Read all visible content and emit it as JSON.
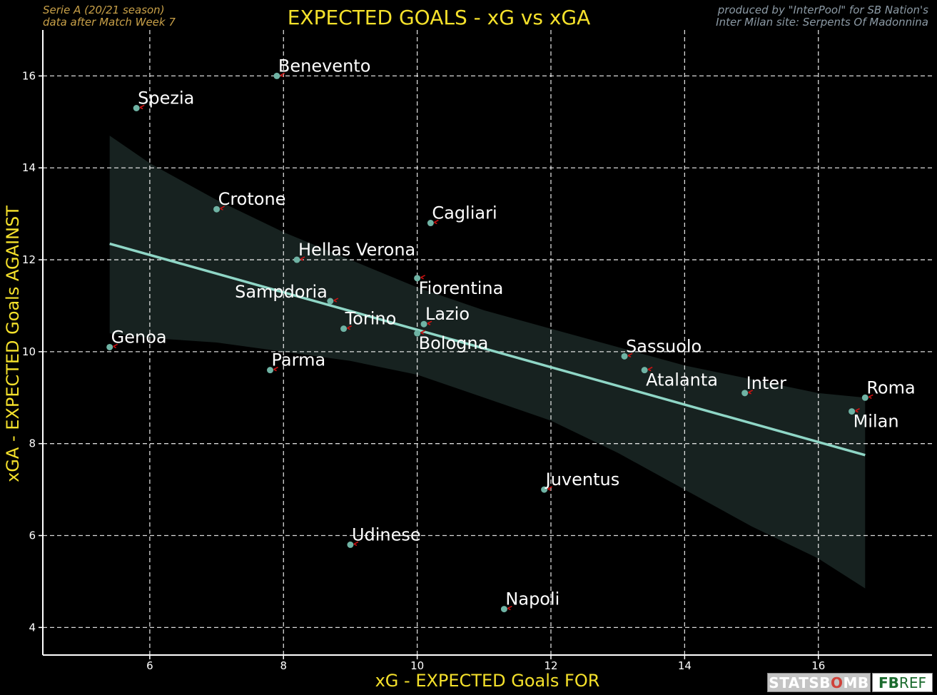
{
  "header": {
    "left_line1": "Serie A  (20/21 season)",
    "left_line2": "data after Match Week 7",
    "right_line1": "produced by \"InterPool\" for SB Nation's",
    "right_line2": "Inter Milan site: Serpents Of Madonnina"
  },
  "logos": {
    "statsbomb_pre": "STATSB",
    "statsbomb_o": "O",
    "statsbomb_post": "MB",
    "fbref_fb": "FB",
    "fbref_ref": "REF"
  },
  "colors": {
    "background": "#000000",
    "title": "#f5e12b",
    "note_left": "#c8a048",
    "note_right": "#8c9aa5",
    "regression": "#8fd6c6",
    "band": "#172220",
    "point": "#6fb3a4",
    "arrow": "#cc1111",
    "grid": "#ffffff"
  },
  "chart_data": {
    "type": "scatter",
    "title": "EXPECTED GOALS - xG vs xGA",
    "xlabel": "xG - EXPECTED Goals FOR",
    "ylabel": "xGA - EXPECTED Goals AGAINST",
    "xlim": [
      4.4,
      17.7
    ],
    "ylim": [
      3.4,
      17.0
    ],
    "xticks": [
      6,
      8,
      10,
      12,
      14,
      16
    ],
    "yticks": [
      4,
      6,
      8,
      10,
      12,
      14,
      16
    ],
    "grid": true,
    "points": [
      {
        "team": "Benevento",
        "x": 7.9,
        "y": 16.0,
        "label_pos": "above"
      },
      {
        "team": "Spezia",
        "x": 5.8,
        "y": 15.3,
        "label_pos": "above"
      },
      {
        "team": "Crotone",
        "x": 7.0,
        "y": 13.1,
        "label_pos": "above"
      },
      {
        "team": "Cagliari",
        "x": 10.2,
        "y": 12.8,
        "label_pos": "above"
      },
      {
        "team": "Hellas Verona",
        "x": 8.2,
        "y": 12.0,
        "label_pos": "above"
      },
      {
        "team": "Fiorentina",
        "x": 10.0,
        "y": 11.6,
        "label_pos": "below"
      },
      {
        "team": "Sampdoria",
        "x": 8.7,
        "y": 11.1,
        "label_pos": "above-left"
      },
      {
        "team": "Torino",
        "x": 8.9,
        "y": 10.5,
        "label_pos": "above"
      },
      {
        "team": "Lazio",
        "x": 10.1,
        "y": 10.6,
        "label_pos": "above"
      },
      {
        "team": "Bologna",
        "x": 10.0,
        "y": 10.4,
        "label_pos": "below"
      },
      {
        "team": "Genoa",
        "x": 5.4,
        "y": 10.1,
        "label_pos": "above"
      },
      {
        "team": "Parma",
        "x": 7.8,
        "y": 9.6,
        "label_pos": "above"
      },
      {
        "team": "Sassuolo",
        "x": 13.1,
        "y": 9.9,
        "label_pos": "above"
      },
      {
        "team": "Atalanta",
        "x": 13.4,
        "y": 9.6,
        "label_pos": "below"
      },
      {
        "team": "Inter",
        "x": 14.9,
        "y": 9.1,
        "label_pos": "above"
      },
      {
        "team": "Roma",
        "x": 16.7,
        "y": 9.0,
        "label_pos": "above"
      },
      {
        "team": "Milan",
        "x": 16.5,
        "y": 8.7,
        "label_pos": "below"
      },
      {
        "team": "Juventus",
        "x": 11.9,
        "y": 7.0,
        "label_pos": "above"
      },
      {
        "team": "Udinese",
        "x": 9.0,
        "y": 5.8,
        "label_pos": "above"
      },
      {
        "team": "Napoli",
        "x": 11.3,
        "y": 4.4,
        "label_pos": "above"
      }
    ],
    "regression": {
      "x": [
        5.4,
        16.7
      ],
      "y": [
        12.35,
        7.75
      ]
    },
    "confidence_band": {
      "upper": [
        [
          5.4,
          14.7
        ],
        [
          6.0,
          14.1
        ],
        [
          7.0,
          13.3
        ],
        [
          8.0,
          12.6
        ],
        [
          9.0,
          12.0
        ],
        [
          10.0,
          11.4
        ],
        [
          11.0,
          10.9
        ],
        [
          12.0,
          10.5
        ],
        [
          13.0,
          10.1
        ],
        [
          14.0,
          9.7
        ],
        [
          15.0,
          9.4
        ],
        [
          16.0,
          9.1
        ],
        [
          16.7,
          9.0
        ]
      ],
      "lower": [
        [
          5.4,
          10.4
        ],
        [
          6.0,
          10.3
        ],
        [
          7.0,
          10.2
        ],
        [
          8.0,
          10.0
        ],
        [
          9.0,
          9.8
        ],
        [
          10.0,
          9.5
        ],
        [
          11.0,
          9.0
        ],
        [
          12.0,
          8.5
        ],
        [
          13.0,
          7.8
        ],
        [
          14.0,
          7.0
        ],
        [
          15.0,
          6.2
        ],
        [
          16.0,
          5.5
        ],
        [
          16.7,
          4.85
        ]
      ]
    }
  }
}
